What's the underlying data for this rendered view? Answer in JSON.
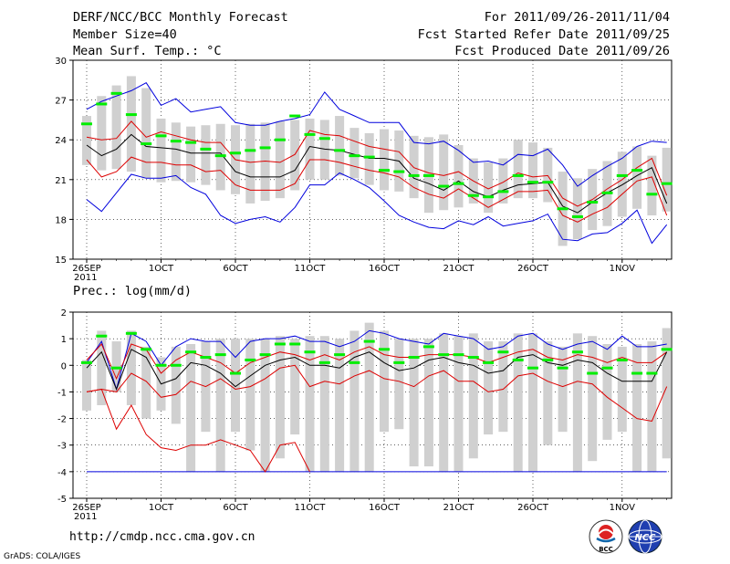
{
  "header": {
    "line1_left": "DERF/NCC/BCC Monthly Forecast",
    "line2_left": "Member Size=40",
    "line3_left": "Mean Surf. Temp.: °C",
    "line1_right": "For 2011/09/26-2011/11/04",
    "line2_right": "Fcst Started Refer Date 2011/09/25",
    "line3_right": "Fcst Produced Date 2011/09/26"
  },
  "precip_label": "Prec.: log(mm/d)",
  "footer": {
    "url": "http://cmdp.ncc.cma.gov.cn",
    "grads": "GrADS: COLA/IGES",
    "logo1_text": "BCC",
    "logo2_text": "NCC"
  },
  "colors": {
    "box": "#d0d0d0",
    "mean": "#00ee00",
    "envelope": "#0000dd",
    "spread": "#dd0000",
    "median": "#000000"
  },
  "chart_data": [
    {
      "type": "box-plume",
      "title": "Mean Surf. Temp.: °C",
      "ylim": [
        15,
        30
      ],
      "yticks": [
        "15",
        "18",
        "21",
        "24",
        "27",
        "30"
      ],
      "xtick_labels": [
        "26SEP",
        "1OCT",
        "6OCT",
        "11OCT",
        "16OCT",
        "21OCT",
        "26OCT",
        "1NOV"
      ],
      "xtick_days": [
        0,
        5,
        10,
        15,
        20,
        25,
        30,
        36
      ],
      "first_label_year": "2011",
      "days": 40,
      "max": [
        26.3,
        26.9,
        27.3,
        27.7,
        28.3,
        26.6,
        27.1,
        26.1,
        26.3,
        26.5,
        25.3,
        25.1,
        25.1,
        25.4,
        25.6,
        25.9,
        27.6,
        26.3,
        25.8,
        25.3,
        25.3,
        25.3,
        23.8,
        23.7,
        23.9,
        23.2,
        22.3,
        22.4,
        22.1,
        22.9,
        22.8,
        23.3,
        22.1,
        20.5,
        21.3,
        22.0,
        22.6,
        23.5,
        23.9,
        23.8
      ],
      "p75": [
        24.2,
        24.0,
        24.1,
        25.4,
        24.2,
        24.6,
        24.3,
        24.0,
        23.8,
        23.8,
        22.5,
        22.3,
        22.4,
        22.3,
        22.9,
        24.7,
        24.4,
        24.3,
        23.9,
        23.5,
        23.3,
        23.1,
        21.9,
        21.5,
        21.3,
        21.6,
        20.9,
        20.3,
        20.8,
        21.5,
        21.2,
        21.3,
        19.6,
        19.0,
        19.5,
        20.3,
        21.0,
        21.9,
        22.6,
        19.8
      ],
      "median": [
        23.6,
        22.8,
        23.3,
        24.4,
        23.5,
        23.4,
        23.3,
        23.0,
        23.0,
        23.0,
        21.6,
        21.2,
        21.2,
        21.2,
        21.7,
        23.5,
        23.3,
        23.2,
        22.9,
        22.6,
        22.6,
        22.4,
        21.1,
        20.7,
        20.2,
        20.9,
        20.1,
        19.7,
        20.2,
        20.6,
        20.7,
        20.8,
        19.0,
        18.5,
        19.3,
        20.0,
        20.6,
        21.3,
        21.9,
        19.2
      ],
      "p25": [
        22.5,
        21.2,
        21.6,
        22.7,
        22.3,
        22.3,
        22.1,
        22.1,
        21.6,
        21.7,
        20.6,
        20.2,
        20.2,
        20.2,
        20.7,
        22.5,
        22.5,
        22.3,
        22.0,
        21.7,
        21.5,
        21.2,
        20.4,
        19.9,
        19.6,
        20.3,
        19.6,
        18.9,
        19.5,
        20.1,
        20.1,
        20.2,
        18.3,
        17.8,
        18.4,
        18.9,
        19.9,
        20.9,
        21.2,
        18.3
      ],
      "min": [
        19.5,
        18.6,
        20.0,
        21.4,
        21.1,
        21.1,
        21.3,
        20.4,
        19.9,
        18.3,
        17.7,
        18.0,
        18.2,
        17.8,
        18.9,
        20.6,
        20.6,
        21.5,
        21.0,
        20.4,
        19.4,
        18.3,
        17.8,
        17.4,
        17.3,
        17.9,
        17.6,
        18.2,
        17.5,
        17.7,
        17.9,
        18.4,
        16.5,
        16.4,
        16.9,
        17.0,
        17.7,
        18.7,
        16.2,
        17.6
      ],
      "mean": [
        25.2,
        26.7,
        27.5,
        25.9,
        23.7,
        24.3,
        23.9,
        23.8,
        23.3,
        22.8,
        23.0,
        23.2,
        23.4,
        24.0,
        25.8,
        24.4,
        24.1,
        23.2,
        22.8,
        22.7,
        21.7,
        21.6,
        21.3,
        21.3,
        20.5,
        20.7,
        19.8,
        19.7,
        20.1,
        21.3,
        20.8,
        20.8,
        18.8,
        18.2,
        19.3,
        20.0,
        21.3,
        21.7,
        19.9,
        20.7
      ],
      "box_top": [
        25.8,
        27.3,
        28.1,
        28.8,
        27.9,
        25.6,
        25.3,
        25.0,
        25.1,
        25.2,
        25.1,
        25.2,
        25.3,
        25.4,
        25.5,
        25.6,
        25.5,
        25.8,
        24.9,
        24.5,
        24.8,
        24.7,
        24.3,
        24.2,
        24.4,
        23.6,
        22.6,
        22.3,
        22.6,
        24.0,
        23.8,
        23.4,
        21.6,
        21.1,
        21.8,
        22.4,
        23.1,
        23.5,
        22.8,
        23.4
      ],
      "box_bot": [
        22.1,
        21.7,
        21.8,
        21.6,
        21.1,
        20.8,
        20.9,
        20.8,
        20.6,
        20.2,
        19.9,
        19.2,
        19.4,
        19.6,
        20.2,
        21.0,
        21.0,
        21.3,
        21.1,
        20.6,
        20.2,
        20.1,
        19.6,
        18.5,
        18.7,
        18.9,
        19.2,
        18.5,
        19.2,
        19.6,
        19.6,
        19.3,
        16.0,
        16.5,
        17.2,
        17.5,
        18.2,
        18.8,
        18.3,
        18.6
      ]
    },
    {
      "type": "box-plume",
      "title": "Prec.: log(mm/d)",
      "ylim": [
        -5,
        2
      ],
      "yticks": [
        "-5",
        "-4",
        "-3",
        "-2",
        "-1",
        "0",
        "1",
        "2"
      ],
      "xtick_labels": [
        "26SEP",
        "1OCT",
        "6OCT",
        "11OCT",
        "16OCT",
        "21OCT",
        "26OCT",
        "1NOV"
      ],
      "xtick_days": [
        0,
        5,
        10,
        15,
        20,
        25,
        30,
        36
      ],
      "first_label_year": "2011",
      "days": 40,
      "max": [
        0.1,
        0.9,
        -0.9,
        1.2,
        0.9,
        0.0,
        0.7,
        1.0,
        0.9,
        0.9,
        0.3,
        0.9,
        1.0,
        1.0,
        1.1,
        0.9,
        0.9,
        0.7,
        0.9,
        1.3,
        1.2,
        1.0,
        0.9,
        0.8,
        1.2,
        1.1,
        1.0,
        0.6,
        0.7,
        1.1,
        1.2,
        0.8,
        0.6,
        0.8,
        0.9,
        0.6,
        1.1,
        0.7,
        0.7,
        0.8
      ],
      "p75": [
        0.2,
        0.8,
        -0.5,
        0.8,
        0.6,
        -0.3,
        0.2,
        0.5,
        0.3,
        0.1,
        -0.3,
        0.1,
        0.3,
        0.5,
        0.4,
        0.2,
        0.4,
        0.2,
        0.5,
        0.7,
        0.4,
        0.3,
        0.3,
        0.4,
        0.4,
        0.4,
        0.3,
        0.1,
        0.3,
        0.5,
        0.6,
        0.3,
        0.2,
        0.4,
        0.3,
        0.1,
        0.3,
        0.1,
        0.1,
        0.5
      ],
      "median": [
        -0.1,
        0.5,
        -0.9,
        0.6,
        0.3,
        -0.7,
        -0.5,
        0.1,
        0.0,
        -0.3,
        -0.8,
        -0.4,
        0.0,
        0.2,
        0.3,
        0.0,
        0.0,
        -0.1,
        0.3,
        0.5,
        0.1,
        -0.2,
        -0.1,
        0.2,
        0.3,
        0.1,
        0.0,
        -0.3,
        -0.2,
        0.3,
        0.4,
        0.1,
        0.0,
        0.2,
        0.1,
        -0.3,
        -0.6,
        -0.6,
        -0.6,
        0.5
      ],
      "p25": [
        -1.0,
        -0.9,
        -1.0,
        -0.3,
        -0.6,
        -1.2,
        -1.1,
        -0.6,
        -0.8,
        -0.5,
        -0.9,
        -0.8,
        -0.5,
        -0.1,
        0.0,
        -0.8,
        -0.6,
        -0.7,
        -0.4,
        -0.2,
        -0.5,
        -0.6,
        -0.8,
        -0.4,
        -0.2,
        -0.6,
        -0.6,
        -1.0,
        -0.9,
        -0.4,
        -0.3,
        -0.6,
        -0.8,
        -0.6,
        -0.7,
        -1.2,
        -1.6,
        -2.0,
        -2.1,
        -0.8
      ],
      "min": [
        -4.0,
        -4.0,
        -4.0,
        -4.0,
        -4.0,
        -4.0,
        -4.0,
        -4.0,
        -4.0,
        -4.0,
        -4.0,
        -4.0,
        -4.0,
        -4.0,
        -4.0,
        -4.0,
        -4.0,
        -4.0,
        -4.0,
        -4.0,
        -4.0,
        -4.0,
        -4.0,
        -4.0,
        -4.0,
        -4.0,
        -4.0,
        -4.0,
        -4.0,
        -4.0,
        -4.0,
        -4.0,
        -4.0,
        -4.0,
        -4.0,
        -4.0,
        -4.0,
        -4.0,
        -4.0,
        -4.0
      ],
      "p10": [
        -1.0,
        -0.9,
        -2.4,
        -1.5,
        -2.6,
        -3.1,
        -3.2,
        -3.0,
        -3.0,
        -2.8,
        -3.0,
        -3.2,
        -4.0,
        -3.0,
        -2.9,
        -4.0,
        null,
        null,
        null,
        null,
        null,
        null,
        null,
        null,
        null,
        null,
        null,
        null,
        null,
        null,
        null,
        null,
        null,
        null,
        null,
        null,
        null,
        null,
        null,
        null
      ],
      "mean": [
        0.1,
        1.1,
        -0.1,
        1.2,
        0.6,
        0.0,
        0.0,
        0.5,
        0.3,
        0.4,
        -0.3,
        0.2,
        0.4,
        0.8,
        0.8,
        0.5,
        0.1,
        0.4,
        0.1,
        0.9,
        0.6,
        0.1,
        0.3,
        0.7,
        0.4,
        0.4,
        0.3,
        0.1,
        0.5,
        0.2,
        -0.1,
        0.2,
        -0.1,
        0.5,
        -0.3,
        -0.1,
        0.2,
        -0.3,
        -0.3,
        0.6
      ],
      "box_top": [
        0.2,
        1.3,
        0.9,
        1.3,
        0.7,
        0.3,
        0.7,
        0.8,
        0.9,
        1.0,
        1.0,
        1.0,
        1.0,
        1.1,
        1.0,
        1.1,
        1.1,
        1.0,
        1.3,
        1.6,
        1.3,
        1.0,
        1.0,
        1.0,
        1.2,
        1.1,
        1.2,
        0.9,
        0.9,
        1.2,
        1.2,
        0.9,
        0.7,
        1.2,
        1.1,
        0.8,
        0.7,
        0.8,
        0.9,
        1.4
      ],
      "box_bot": [
        -1.7,
        -1.5,
        -1.0,
        -1.5,
        -2.0,
        -1.7,
        -2.2,
        -4.0,
        -2.5,
        -4.0,
        -2.5,
        -3.2,
        -4.0,
        -3.5,
        -2.6,
        -4.0,
        -4.0,
        -4.0,
        -4.0,
        -4.0,
        -2.5,
        -2.4,
        -3.8,
        -3.8,
        -4.0,
        -4.0,
        -3.5,
        -2.6,
        -2.5,
        -4.0,
        -4.0,
        -3.0,
        -2.5,
        -4.0,
        -3.6,
        -2.8,
        -2.5,
        -4.0,
        -4.0,
        -3.5
      ]
    }
  ]
}
